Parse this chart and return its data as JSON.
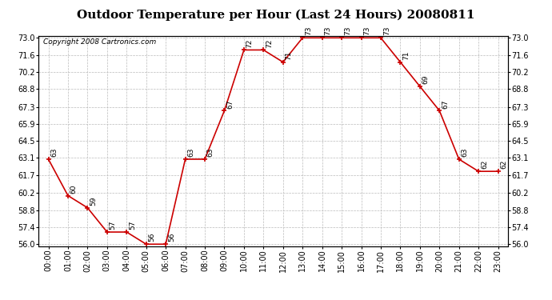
{
  "title": "Outdoor Temperature per Hour (Last 24 Hours) 20080811",
  "copyright": "Copyright 2008 Cartronics.com",
  "hours": [
    "00:00",
    "01:00",
    "02:00",
    "03:00",
    "04:00",
    "05:00",
    "06:00",
    "07:00",
    "08:00",
    "09:00",
    "10:00",
    "11:00",
    "12:00",
    "13:00",
    "14:00",
    "15:00",
    "16:00",
    "17:00",
    "18:00",
    "19:00",
    "20:00",
    "21:00",
    "22:00",
    "23:00"
  ],
  "temps": [
    63,
    60,
    59,
    57,
    57,
    56,
    56,
    63,
    63,
    67,
    72,
    72,
    71,
    73,
    73,
    73,
    73,
    73,
    71,
    69,
    67,
    63,
    62,
    62
  ],
  "ylim_min": 56.0,
  "ylim_max": 73.0,
  "yticks": [
    56.0,
    57.4,
    58.8,
    60.2,
    61.7,
    63.1,
    64.5,
    65.9,
    67.3,
    68.8,
    70.2,
    71.6,
    73.0
  ],
  "line_color": "#cc0000",
  "marker_color": "#cc0000",
  "bg_color": "#ffffff",
  "grid_color": "#bbbbbb",
  "title_fontsize": 11,
  "label_fontsize": 6.5,
  "tick_fontsize": 7,
  "copyright_fontsize": 6.5
}
